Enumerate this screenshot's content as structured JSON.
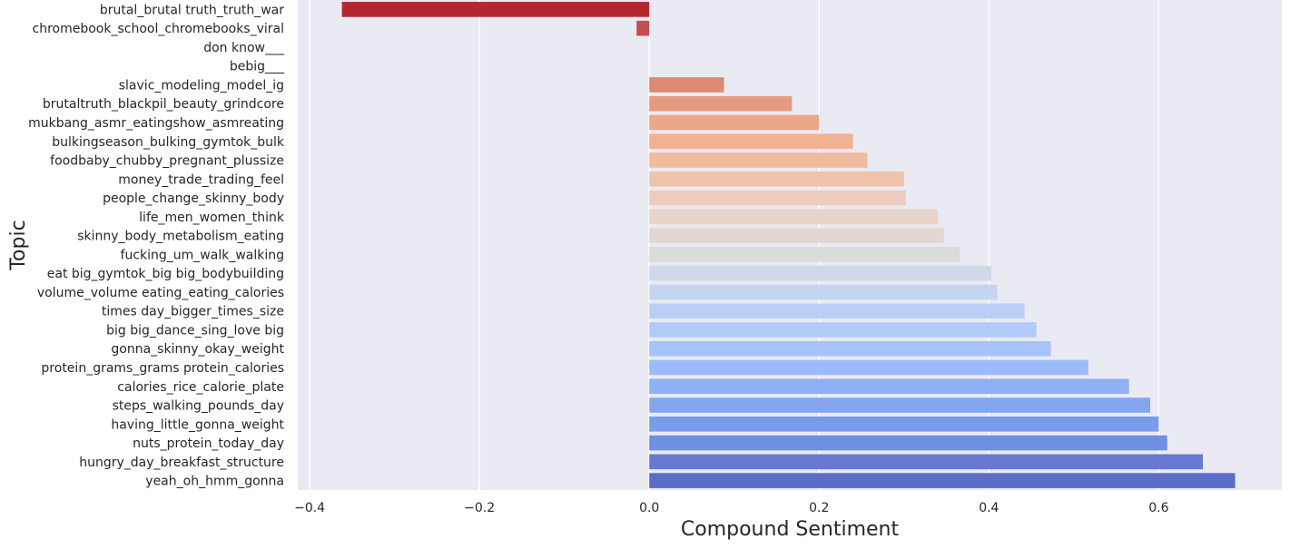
{
  "chart_data": {
    "type": "bar",
    "orientation": "horizontal",
    "xlabel": "Compound Sentiment",
    "ylabel": "Topic",
    "xlim": [
      -0.414,
      0.745
    ],
    "xticks": [
      -0.4,
      -0.2,
      0.0,
      0.2,
      0.4,
      0.6
    ],
    "xtick_labels": [
      "−0.4",
      "−0.2",
      "0.0",
      "0.2",
      "0.4",
      "0.6"
    ],
    "grid": true,
    "legend": "none",
    "colormap": "coolwarm_r",
    "categories": [
      "brutal_brutal truth_truth_war",
      "chromebook_school_chromebooks_viral",
      "don know___",
      "bebig___",
      "slavic_modeling_model_ig",
      "brutaltruth_blackpil_beauty_grindcore",
      "mukbang_asmr_eatingshow_asmreating",
      "bulkingseason_bulking_gymtok_bulk",
      "foodbaby_chubby_pregnant_plussize",
      "money_trade_trading_feel",
      "people_change_skinny_body",
      "life_men_women_think",
      "skinny_body_metabolism_eating",
      "fucking_um_walk_walking",
      "eat big_gymtok_big big_bodybuilding",
      "volume_volume eating_eating_calories",
      "times day_bigger_times_size",
      "big big_dance_sing_love big",
      "gonna_skinny_okay_weight",
      "protein_grams_grams protein_calories",
      "calories_rice_calorie_plate",
      "steps_walking_pounds_day",
      "having_little_gonna_weight",
      "nuts_protein_today_day",
      "hungry_day_breakfast_structure",
      "yeah_oh_hmm_gonna"
    ],
    "values": [
      -0.362,
      -0.015,
      0.0,
      0.0,
      0.088,
      0.168,
      0.2,
      0.24,
      0.257,
      0.3,
      0.302,
      0.34,
      0.347,
      0.366,
      0.403,
      0.41,
      0.442,
      0.456,
      0.473,
      0.517,
      0.565,
      0.59,
      0.6,
      0.61,
      0.652,
      0.69
    ],
    "colors": [
      "#b3282f",
      "#c44e4f",
      "#d86a5d",
      "#e07c66",
      "#dd8872",
      "#e69a7f",
      "#eca688",
      "#f0b293",
      "#efbca0",
      "#eec3ad",
      "#ebccbd",
      "#e7d3c9",
      "#e2d8d3",
      "#dcdbdc",
      "#d0d8e7",
      "#c6d5ef",
      "#bacff5",
      "#b0cafa",
      "#a6c3fc",
      "#9bbbfb",
      "#8fb0f6",
      "#84a6f1",
      "#7a9aeb",
      "#6f8fe2",
      "#6678d1",
      "#5c6cc9"
    ]
  }
}
